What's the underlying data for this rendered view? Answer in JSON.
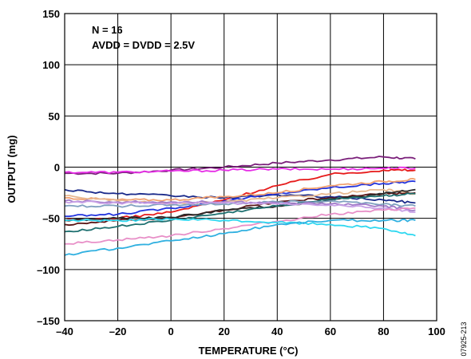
{
  "chart_data": {
    "type": "line",
    "xlabel": "TEMPERATURE (°C)",
    "ylabel": "OUTPUT (mg)",
    "xlim": [
      -40,
      100
    ],
    "ylim": [
      -150,
      150
    ],
    "x_ticks": [
      -40,
      -20,
      0,
      20,
      40,
      60,
      80,
      100
    ],
    "x_tick_labels": [
      "–40",
      "–20",
      "0",
      "20",
      "40",
      "60",
      "80",
      "100"
    ],
    "y_ticks": [
      -150,
      -100,
      -50,
      0,
      50,
      100,
      150
    ],
    "y_tick_labels": [
      "–150",
      "–100",
      "–50",
      "0",
      "50",
      "100",
      "150"
    ],
    "grid": true,
    "annotations": [
      "N = 16",
      "AVDD = DVDD = 2.5V"
    ],
    "figure_id": "07925-213",
    "series": [
      {
        "color": "#7a1f7a",
        "x": [
          -40,
          -20,
          0,
          20,
          40,
          60,
          80,
          92
        ],
        "values": [
          -6,
          -6,
          -3,
          0,
          4,
          7,
          10,
          8
        ]
      },
      {
        "color": "#e62ee6",
        "x": [
          -40,
          -20,
          0,
          20,
          40,
          60,
          80,
          92
        ],
        "values": [
          -5,
          -5,
          -4,
          -3,
          -2,
          -2,
          -1,
          -1
        ]
      },
      {
        "color": "#e61a1a",
        "x": [
          -40,
          -20,
          0,
          20,
          40,
          60,
          80,
          92
        ],
        "values": [
          -52,
          -50,
          -44,
          -32,
          -18,
          -7,
          -3,
          -3
        ]
      },
      {
        "color": "#1a2a8a",
        "x": [
          -40,
          -20,
          0,
          20,
          40,
          60,
          80,
          92
        ],
        "values": [
          -22,
          -26,
          -28,
          -30,
          -27,
          -29,
          -32,
          -35
        ]
      },
      {
        "color": "#2233dd",
        "x": [
          -40,
          -20,
          0,
          20,
          40,
          60,
          80,
          92
        ],
        "values": [
          -48,
          -46,
          -40,
          -33,
          -26,
          -20,
          -16,
          -14
        ]
      },
      {
        "color": "#f0a070",
        "x": [
          -40,
          -20,
          0,
          20,
          40,
          60,
          80,
          92
        ],
        "values": [
          -30,
          -32,
          -32,
          -29,
          -25,
          -18,
          -14,
          -12
        ]
      },
      {
        "color": "#e8b890",
        "x": [
          -40,
          -20,
          0,
          20,
          40,
          60,
          80,
          92
        ],
        "values": [
          -28,
          -33,
          -36,
          -34,
          -30,
          -26,
          -22,
          -26
        ]
      },
      {
        "color": "#5a1414",
        "x": [
          -40,
          -20,
          0,
          20,
          40,
          60,
          80,
          92
        ],
        "values": [
          -56,
          -52,
          -50,
          -42,
          -34,
          -30,
          -26,
          -25
        ]
      },
      {
        "color": "#2a2a2a",
        "x": [
          -40,
          -20,
          0,
          20,
          40,
          60,
          80,
          92
        ],
        "values": [
          -52,
          -50,
          -49,
          -42,
          -38,
          -32,
          -26,
          -22
        ]
      },
      {
        "color": "#1e7070",
        "x": [
          -40,
          -20,
          0,
          20,
          40,
          60,
          80,
          92
        ],
        "values": [
          -63,
          -58,
          -52,
          -45,
          -38,
          -31,
          -28,
          -26
        ]
      },
      {
        "color": "#7fa0c0",
        "x": [
          -40,
          -20,
          0,
          20,
          40,
          60,
          80,
          92
        ],
        "values": [
          -38,
          -38,
          -37,
          -36,
          -34,
          -33,
          -36,
          -38
        ]
      },
      {
        "color": "#a07ac8",
        "x": [
          -40,
          -20,
          0,
          20,
          40,
          60,
          80,
          92
        ],
        "values": [
          -33,
          -34,
          -34,
          -34,
          -35,
          -36,
          -38,
          -42
        ]
      },
      {
        "color": "#c8a0e6",
        "x": [
          -40,
          -20,
          0,
          20,
          40,
          60,
          80,
          92
        ],
        "values": [
          -34,
          -35,
          -35,
          -35,
          -36,
          -37,
          -40,
          -44
        ]
      },
      {
        "color": "#e890c8",
        "x": [
          -40,
          -20,
          0,
          20,
          40,
          60,
          80,
          92
        ],
        "values": [
          -75,
          -71,
          -67,
          -60,
          -53,
          -46,
          -42,
          -40
        ]
      },
      {
        "color": "#30d8f0",
        "x": [
          -40,
          -20,
          0,
          20,
          40,
          60,
          80,
          92
        ],
        "values": [
          -52,
          -52,
          -51,
          -52,
          -54,
          -56,
          -60,
          -67
        ]
      },
      {
        "color": "#30b0e0",
        "x": [
          -40,
          -20,
          0,
          20,
          40,
          60,
          80,
          92
        ],
        "values": [
          -86,
          -79,
          -72,
          -65,
          -56,
          -52,
          -52,
          -52
        ]
      }
    ]
  }
}
